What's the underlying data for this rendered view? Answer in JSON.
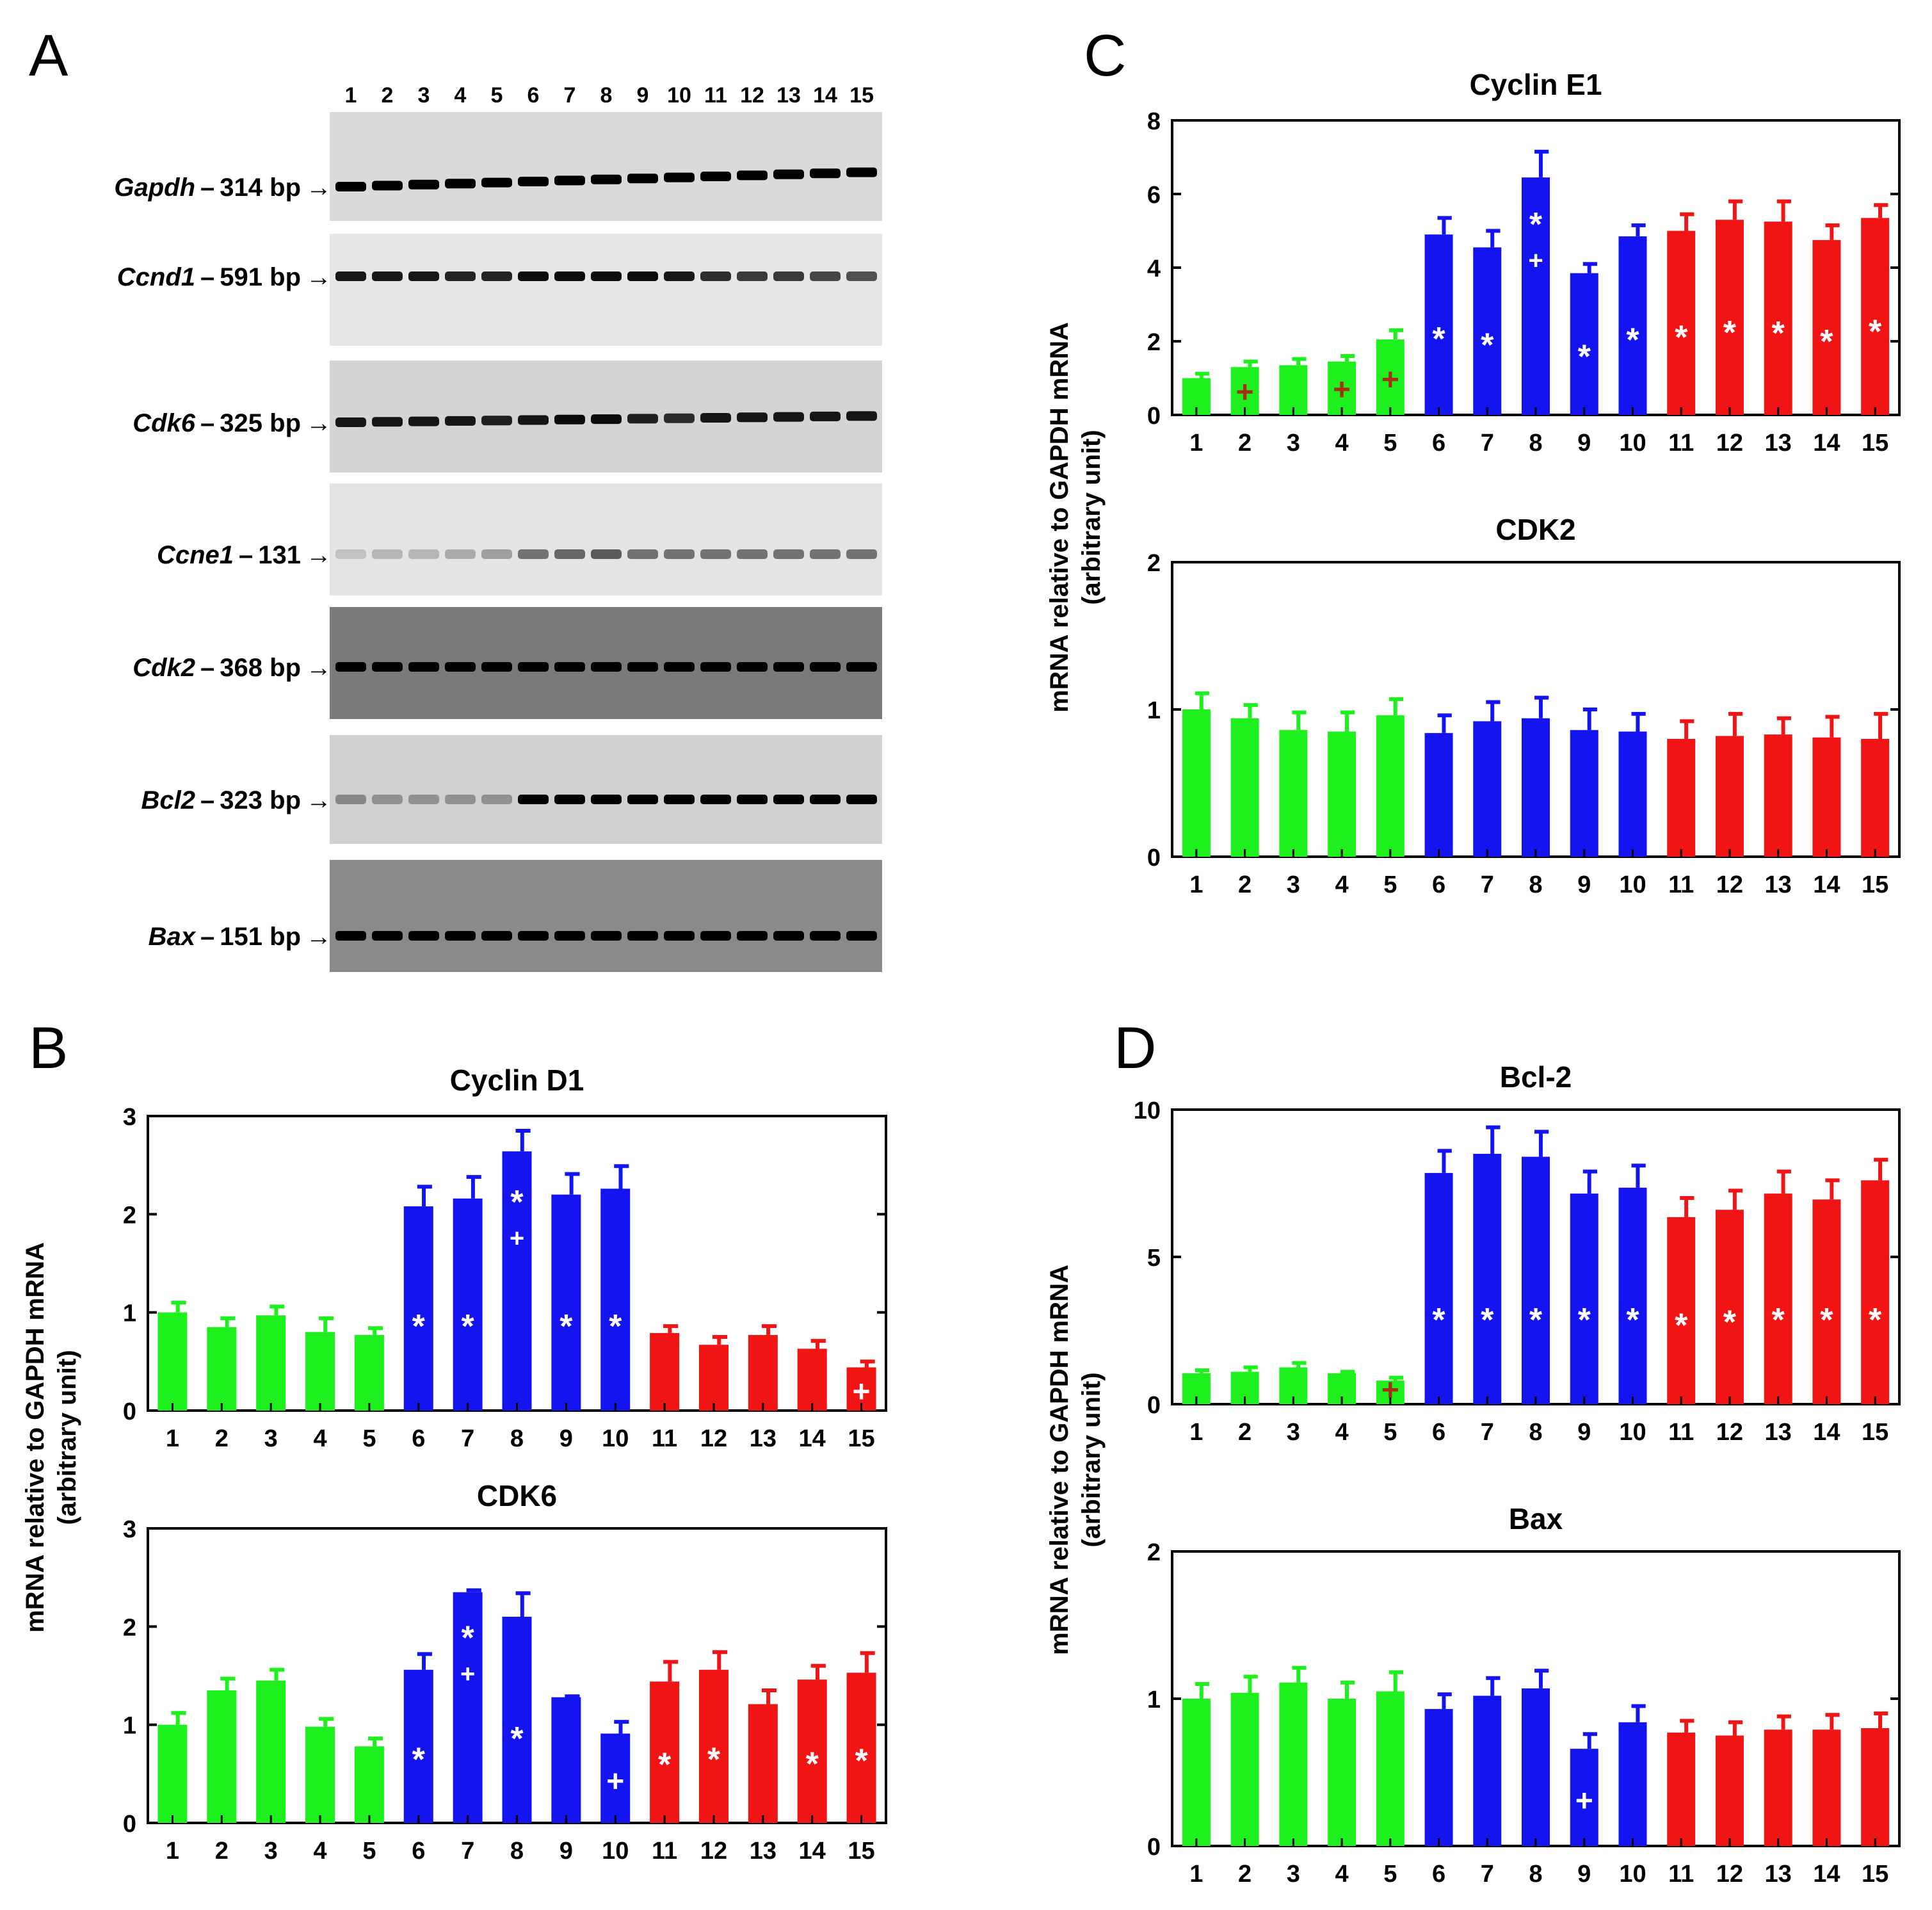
{
  "figure": {
    "panels": [
      "A",
      "B",
      "C",
      "D"
    ],
    "ylabel_line1": "mRNA relative to GAPDH mRNA",
    "ylabel_line2": "(arbitrary unit)",
    "colors": {
      "group1": "#1ef01e",
      "group2": "#1414f0",
      "group3": "#f01414",
      "marker_on_dark": "#ffffff",
      "marker_on_green": "#a33010",
      "gel_band": "#000000"
    }
  },
  "gel": {
    "lanes": [
      "1",
      "2",
      "3",
      "4",
      "5",
      "6",
      "7",
      "8",
      "9",
      "10",
      "11",
      "12",
      "13",
      "14",
      "15"
    ],
    "rows": [
      {
        "gene": "Gapdh",
        "size": "314 bp",
        "background": "#dadada",
        "intensity": [
          1,
          1,
          1,
          1,
          1,
          1,
          1,
          1,
          1,
          1,
          1,
          1,
          1,
          1,
          1
        ]
      },
      {
        "gene": "Ccnd1",
        "size": "591 bp",
        "background": "#e6e6e6",
        "intensity": [
          0.9,
          0.9,
          0.9,
          0.85,
          0.85,
          0.95,
          0.95,
          0.95,
          0.95,
          0.9,
          0.8,
          0.75,
          0.75,
          0.7,
          0.65
        ]
      },
      {
        "gene": "Cdk6",
        "size": "325 bp",
        "background": "#d4d4d4",
        "intensity": [
          0.9,
          0.9,
          0.9,
          0.9,
          0.85,
          0.9,
          0.95,
          0.95,
          0.85,
          0.8,
          0.9,
          0.9,
          0.9,
          0.9,
          0.9
        ]
      },
      {
        "gene": "Ccne1",
        "size": "131",
        "background": "#e4e4e4",
        "intensity": [
          0.15,
          0.2,
          0.2,
          0.25,
          0.3,
          0.5,
          0.55,
          0.6,
          0.5,
          0.5,
          0.5,
          0.5,
          0.5,
          0.5,
          0.5
        ]
      },
      {
        "gene": "Cdk2",
        "size": "368 bp",
        "background": "#7a7a7a",
        "intensity": [
          1,
          1,
          1,
          1,
          1,
          1,
          1,
          1,
          1,
          1,
          1,
          1,
          1,
          1,
          1
        ]
      },
      {
        "gene": "Bcl2",
        "size": "323 bp",
        "background": "#d0d0d0",
        "intensity": [
          0.35,
          0.3,
          0.3,
          0.3,
          0.3,
          1,
          1,
          1,
          1,
          1,
          1,
          1,
          1,
          1,
          1
        ]
      },
      {
        "gene": "Bax",
        "size": "151 bp",
        "background": "#8a8a8a",
        "intensity": [
          1,
          1,
          1,
          1,
          1,
          1,
          1,
          1,
          1,
          1,
          1,
          1,
          1,
          1,
          1
        ]
      }
    ]
  },
  "chart_data": [
    {
      "id": "cyclinD1",
      "panel": "B",
      "type": "bar",
      "title": "Cyclin D1",
      "categories": [
        "1",
        "2",
        "3",
        "4",
        "5",
        "6",
        "7",
        "8",
        "9",
        "10",
        "11",
        "12",
        "13",
        "14",
        "15"
      ],
      "ylim": [
        0,
        3
      ],
      "yticks": [
        "0",
        "1",
        "2",
        "3"
      ],
      "groups": [
        1,
        1,
        1,
        1,
        1,
        2,
        2,
        2,
        2,
        2,
        3,
        3,
        3,
        3,
        3
      ],
      "values": [
        1.0,
        0.85,
        0.97,
        0.8,
        0.77,
        2.08,
        2.16,
        2.64,
        2.2,
        2.26,
        0.79,
        0.67,
        0.77,
        0.63,
        0.44
      ],
      "errors": [
        0.1,
        0.09,
        0.09,
        0.14,
        0.07,
        0.2,
        0.22,
        0.21,
        0.21,
        0.23,
        0.07,
        0.08,
        0.09,
        0.08,
        0.06
      ],
      "markers": [
        "",
        "",
        "",
        "",
        "",
        "*",
        "*",
        "*+",
        "*",
        "*",
        "",
        "",
        "",
        "",
        "+"
      ]
    },
    {
      "id": "cdk6",
      "panel": "B",
      "type": "bar",
      "title": "CDK6",
      "categories": [
        "1",
        "2",
        "3",
        "4",
        "5",
        "6",
        "7",
        "8",
        "9",
        "10",
        "11",
        "12",
        "13",
        "14",
        "15"
      ],
      "ylim": [
        0,
        3
      ],
      "yticks": [
        "0",
        "1",
        "2",
        "3"
      ],
      "groups": [
        1,
        1,
        1,
        1,
        1,
        2,
        2,
        2,
        2,
        2,
        3,
        3,
        3,
        3,
        3
      ],
      "values": [
        1.0,
        1.35,
        1.45,
        0.98,
        0.78,
        1.56,
        2.35,
        2.1,
        1.28,
        0.91,
        1.44,
        1.56,
        1.21,
        1.46,
        1.53
      ],
      "errors": [
        0.12,
        0.12,
        0.11,
        0.08,
        0.08,
        0.16,
        0.02,
        0.24,
        0.01,
        0.12,
        0.2,
        0.18,
        0.14,
        0.14,
        0.2
      ],
      "markers": [
        "",
        "",
        "",
        "",
        "",
        "*",
        "*+",
        "*",
        "",
        "+",
        "*",
        "*",
        "",
        "*",
        "*"
      ]
    },
    {
      "id": "cyclinE1",
      "panel": "C",
      "type": "bar",
      "title": "Cyclin E1",
      "categories": [
        "1",
        "2",
        "3",
        "4",
        "5",
        "6",
        "7",
        "8",
        "9",
        "10",
        "11",
        "12",
        "13",
        "14",
        "15"
      ],
      "ylim": [
        0,
        8
      ],
      "yticks": [
        "0",
        "2",
        "4",
        "6",
        "8"
      ],
      "groups": [
        1,
        1,
        1,
        1,
        1,
        2,
        2,
        2,
        2,
        2,
        3,
        3,
        3,
        3,
        3
      ],
      "values": [
        1.0,
        1.3,
        1.35,
        1.45,
        2.05,
        4.9,
        4.55,
        6.45,
        3.85,
        4.85,
        5.0,
        5.3,
        5.25,
        4.75,
        5.35
      ],
      "errors": [
        0.12,
        0.15,
        0.17,
        0.15,
        0.25,
        0.45,
        0.45,
        0.7,
        0.25,
        0.3,
        0.45,
        0.5,
        0.55,
        0.4,
        0.35
      ],
      "markers": [
        "",
        "+",
        "",
        "+",
        "+",
        "*",
        "*",
        "*+",
        "*",
        "*",
        "*",
        "*",
        "*",
        "*",
        "*"
      ]
    },
    {
      "id": "cdk2",
      "panel": "C",
      "type": "bar",
      "title": "CDK2",
      "categories": [
        "1",
        "2",
        "3",
        "4",
        "5",
        "6",
        "7",
        "8",
        "9",
        "10",
        "11",
        "12",
        "13",
        "14",
        "15"
      ],
      "ylim": [
        0,
        2
      ],
      "yticks": [
        "0",
        "1",
        "2"
      ],
      "groups": [
        1,
        1,
        1,
        1,
        1,
        2,
        2,
        2,
        2,
        2,
        3,
        3,
        3,
        3,
        3
      ],
      "values": [
        1.0,
        0.94,
        0.86,
        0.85,
        0.96,
        0.84,
        0.92,
        0.94,
        0.86,
        0.85,
        0.8,
        0.82,
        0.83,
        0.81,
        0.8
      ],
      "errors": [
        0.11,
        0.09,
        0.12,
        0.13,
        0.11,
        0.12,
        0.13,
        0.14,
        0.14,
        0.12,
        0.12,
        0.15,
        0.11,
        0.14,
        0.17
      ],
      "markers": [
        "",
        "",
        "",
        "",
        "",
        "",
        "",
        "",
        "",
        "",
        "",
        "",
        "",
        "",
        ""
      ]
    },
    {
      "id": "bcl2",
      "panel": "D",
      "type": "bar",
      "title": "Bcl-2",
      "categories": [
        "1",
        "2",
        "3",
        "4",
        "5",
        "6",
        "7",
        "8",
        "9",
        "10",
        "11",
        "12",
        "13",
        "14",
        "15"
      ],
      "ylim": [
        0,
        10
      ],
      "yticks": [
        "0",
        "5",
        "10"
      ],
      "groups": [
        1,
        1,
        1,
        1,
        1,
        2,
        2,
        2,
        2,
        2,
        3,
        3,
        3,
        3,
        3
      ],
      "values": [
        1.05,
        1.1,
        1.25,
        1.05,
        0.8,
        7.85,
        8.5,
        8.4,
        7.15,
        7.35,
        6.35,
        6.6,
        7.15,
        6.95,
        7.6
      ],
      "errors": [
        0.1,
        0.15,
        0.15,
        0.05,
        0.1,
        0.75,
        0.9,
        0.85,
        0.75,
        0.75,
        0.65,
        0.65,
        0.75,
        0.65,
        0.7
      ],
      "markers": [
        "",
        "",
        "",
        "",
        "+",
        "*",
        "*",
        "*",
        "*",
        "*",
        "*",
        "*",
        "*",
        "*",
        "*"
      ]
    },
    {
      "id": "bax",
      "panel": "D",
      "type": "bar",
      "title": "Bax",
      "categories": [
        "1",
        "2",
        "3",
        "4",
        "5",
        "6",
        "7",
        "8",
        "9",
        "10",
        "11",
        "12",
        "13",
        "14",
        "15"
      ],
      "ylim": [
        0,
        2
      ],
      "yticks": [
        "0",
        "1",
        "2"
      ],
      "groups": [
        1,
        1,
        1,
        1,
        1,
        2,
        2,
        2,
        2,
        2,
        3,
        3,
        3,
        3,
        3
      ],
      "values": [
        1.0,
        1.04,
        1.11,
        1.0,
        1.05,
        0.93,
        1.02,
        1.07,
        0.66,
        0.84,
        0.77,
        0.75,
        0.79,
        0.79,
        0.8
      ],
      "errors": [
        0.1,
        0.11,
        0.1,
        0.11,
        0.13,
        0.1,
        0.12,
        0.12,
        0.1,
        0.11,
        0.08,
        0.09,
        0.09,
        0.1,
        0.1
      ],
      "markers": [
        "",
        "",
        "",
        "",
        "",
        "",
        "",
        "",
        "+",
        "",
        "",
        "",
        "",
        "",
        ""
      ]
    }
  ]
}
